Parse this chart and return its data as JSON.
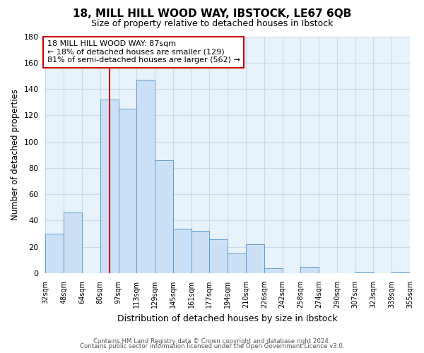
{
  "title": "18, MILL HILL WOOD WAY, IBSTOCK, LE67 6QB",
  "subtitle": "Size of property relative to detached houses in Ibstock",
  "xlabel": "Distribution of detached houses by size in Ibstock",
  "ylabel": "Number of detached properties",
  "bin_labels": [
    "32sqm",
    "48sqm",
    "64sqm",
    "80sqm",
    "97sqm",
    "113sqm",
    "129sqm",
    "145sqm",
    "161sqm",
    "177sqm",
    "194sqm",
    "210sqm",
    "226sqm",
    "242sqm",
    "258sqm",
    "274sqm",
    "290sqm",
    "307sqm",
    "323sqm",
    "339sqm",
    "355sqm"
  ],
  "bar_heights": [
    30,
    46,
    0,
    132,
    125,
    147,
    86,
    34,
    32,
    26,
    15,
    22,
    4,
    0,
    5,
    0,
    0,
    1,
    0,
    1
  ],
  "bar_color": "#cce0f5",
  "bar_edge_color": "#5b9bd5",
  "red_line_bin": 3.5,
  "annotation_text1": "18 MILL HILL WOOD WAY: 87sqm",
  "annotation_text2": "← 18% of detached houses are smaller (129)",
  "annotation_text3": "81% of semi-detached houses are larger (562) →",
  "annotation_box_color": "#ffffff",
  "annotation_border_color": "#cc0000",
  "red_line_color": "#cc0000",
  "ylim": [
    0,
    180
  ],
  "yticks": [
    0,
    20,
    40,
    60,
    80,
    100,
    120,
    140,
    160,
    180
  ],
  "grid_color": "#c8daea",
  "footer1": "Contains HM Land Registry data © Crown copyright and database right 2024.",
  "footer2": "Contains public sector information licensed under the Open Government Licence v3.0.",
  "background_color": "#e8f2fa"
}
